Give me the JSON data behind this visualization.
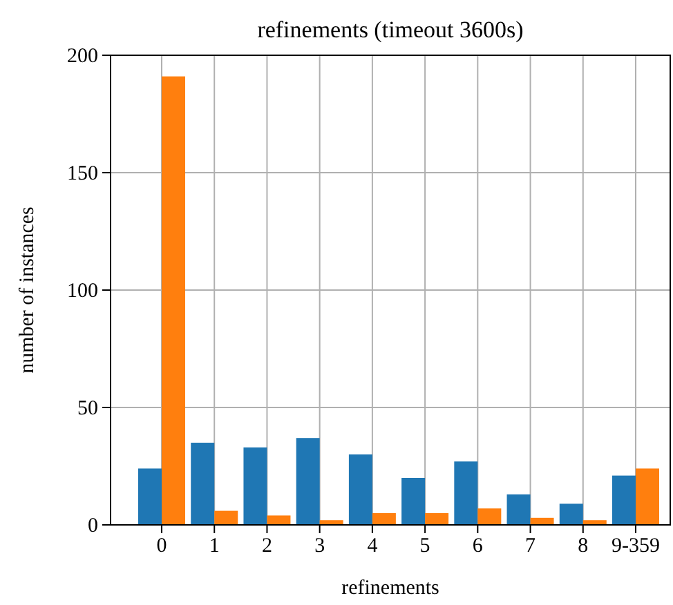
{
  "chart_data": {
    "type": "bar",
    "title": "refinements (timeout 3600s)",
    "xlabel": "refinements",
    "ylabel": "number of instances",
    "categories": [
      "0",
      "1",
      "2",
      "3",
      "4",
      "5",
      "6",
      "7",
      "8",
      "9-359"
    ],
    "series": [
      {
        "color": "#1f77b4",
        "values": [
          24,
          35,
          33,
          37,
          30,
          20,
          27,
          13,
          9,
          21
        ]
      },
      {
        "color": "#ff7f0e",
        "values": [
          191,
          6,
          4,
          2,
          5,
          5,
          7,
          3,
          2,
          24
        ]
      }
    ],
    "ylim": [
      0,
      200
    ],
    "yticks": [
      0,
      50,
      100,
      150,
      200
    ],
    "grid": true
  }
}
